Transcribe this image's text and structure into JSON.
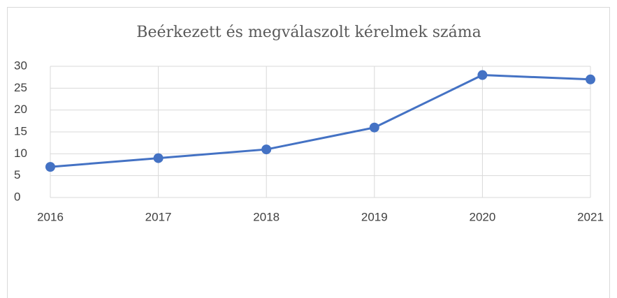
{
  "chart_data": {
    "type": "line",
    "title": "Beérkezett és megválaszolt kérelmek száma",
    "categories": [
      "2016",
      "2017",
      "2018",
      "2019",
      "2020",
      "2021"
    ],
    "series": [
      {
        "color": "#4472c4",
        "values": [
          7,
          9,
          11,
          16,
          28,
          27
        ]
      }
    ],
    "ylim": [
      0,
      30
    ],
    "yticks": [
      0,
      5,
      10,
      15,
      20,
      25,
      30
    ],
    "grid": true
  }
}
